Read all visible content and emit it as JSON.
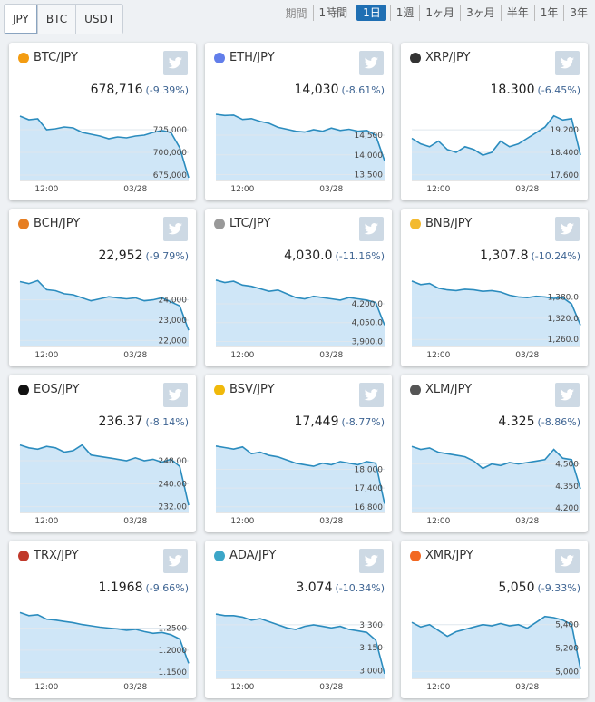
{
  "tabs": {
    "items": [
      "JPY",
      "BTC",
      "USDT"
    ],
    "active": 0
  },
  "period": {
    "label": "期間",
    "options": [
      "1時間",
      "1日",
      "1週",
      "1ヶ月",
      "3ヶ月",
      "半年",
      "1年",
      "3年"
    ],
    "active": 1
  },
  "cards": [
    {
      "pair": "BTC/JPY",
      "price": "678,716",
      "change": "(-9.39%)",
      "chart": {
        "type": "line",
        "color": "#2b8cbe",
        "grid": true,
        "categories": [
          null,
          null,
          null,
          "12:00",
          null,
          null,
          null,
          null,
          null,
          null,
          null,
          null,
          null,
          "03/28",
          null,
          null,
          null,
          null,
          null,
          null
        ],
        "values": [
          740000,
          736000,
          737000,
          725000,
          726000,
          728000,
          727000,
          722000,
          720000,
          718000,
          715000,
          717000,
          716000,
          718000,
          719000,
          722000,
          724000,
          722000,
          705000,
          672000
        ],
        "ylim": [
          669000,
          745000
        ],
        "yticks": [
          {
            "value": 675000,
            "label": "675,000"
          },
          {
            "value": 700000,
            "label": "700,000"
          },
          {
            "value": 725000,
            "label": "725,000"
          }
        ]
      }
    },
    {
      "pair": "ETH/JPY",
      "price": "14,030",
      "change": "(-8.61%)",
      "chart": {
        "type": "line",
        "color": "#2b8cbe",
        "grid": true,
        "categories": [
          null,
          null,
          null,
          "12:00",
          null,
          null,
          null,
          null,
          null,
          null,
          null,
          null,
          null,
          "03/28",
          null,
          null,
          null,
          null,
          null,
          null
        ],
        "values": [
          15030,
          15000,
          15010,
          14900,
          14920,
          14850,
          14800,
          14700,
          14650,
          14600,
          14580,
          14640,
          14600,
          14680,
          14620,
          14650,
          14600,
          14620,
          14500,
          13850
        ],
        "ylim": [
          13350,
          15100
        ],
        "yticks": [
          {
            "value": 13500,
            "label": "13,500"
          },
          {
            "value": 14000,
            "label": "14,000"
          },
          {
            "value": 14500,
            "label": "14,500"
          }
        ]
      }
    },
    {
      "pair": "XRP/JPY",
      "price": "18.300",
      "change": "(-6.45%)",
      "chart": {
        "type": "line",
        "color": "#2b8cbe",
        "grid": true,
        "categories": [
          null,
          null,
          null,
          "12:00",
          null,
          null,
          null,
          null,
          null,
          null,
          null,
          null,
          null,
          "03/28",
          null,
          null,
          null,
          null,
          null,
          null
        ],
        "values": [
          18.9,
          18.7,
          18.6,
          18.8,
          18.5,
          18.4,
          18.6,
          18.5,
          18.3,
          18.4,
          18.8,
          18.6,
          18.7,
          18.9,
          19.1,
          19.3,
          19.7,
          19.55,
          19.6,
          18.3
        ],
        "ylim": [
          17.4,
          19.85
        ],
        "yticks": [
          {
            "value": 17.6,
            "label": "17.600"
          },
          {
            "value": 18.4,
            "label": "18.400"
          },
          {
            "value": 19.2,
            "label": "19.200"
          }
        ]
      }
    },
    {
      "pair": "BCH/JPY",
      "price": "22,952",
      "change": "(-9.79%)",
      "chart": {
        "type": "line",
        "color": "#2b8cbe",
        "grid": true,
        "categories": [
          null,
          null,
          null,
          "12:00",
          null,
          null,
          null,
          null,
          null,
          null,
          null,
          null,
          null,
          "03/28",
          null,
          null,
          null,
          null,
          null,
          null
        ],
        "values": [
          24900,
          24800,
          24950,
          24500,
          24450,
          24300,
          24250,
          24100,
          23950,
          24050,
          24150,
          24100,
          24050,
          24100,
          23950,
          24000,
          24100,
          23900,
          23700,
          22500
        ],
        "ylim": [
          21700,
          25100
        ],
        "yticks": [
          {
            "value": 22000,
            "label": "22,000"
          },
          {
            "value": 23000,
            "label": "23,000"
          },
          {
            "value": 24000,
            "label": "24,000"
          }
        ]
      }
    },
    {
      "pair": "LTC/JPY",
      "price": "4,030.0",
      "change": "(-11.16%)",
      "chart": {
        "type": "line",
        "color": "#2b8cbe",
        "grid": true,
        "categories": [
          null,
          null,
          null,
          "12:00",
          null,
          null,
          null,
          null,
          null,
          null,
          null,
          null,
          null,
          "03/28",
          null,
          null,
          null,
          null,
          null,
          null
        ],
        "values": [
          4390,
          4370,
          4380,
          4350,
          4340,
          4320,
          4300,
          4310,
          4280,
          4250,
          4240,
          4260,
          4250,
          4240,
          4230,
          4250,
          4240,
          4230,
          4210,
          4030
        ],
        "ylim": [
          3860,
          4410
        ],
        "yticks": [
          {
            "value": 3900,
            "label": "3,900.0"
          },
          {
            "value": 4050,
            "label": "4,050.0"
          },
          {
            "value": 4200,
            "label": "4,200.0"
          }
        ]
      }
    },
    {
      "pair": "BNB/JPY",
      "price": "1,307.8",
      "change": "(-10.24%)",
      "chart": {
        "type": "line",
        "color": "#2b8cbe",
        "grid": true,
        "categories": [
          null,
          null,
          null,
          "12:00",
          null,
          null,
          null,
          null,
          null,
          null,
          null,
          null,
          null,
          "03/28",
          null,
          null,
          null,
          null,
          null,
          null
        ],
        "values": [
          1425,
          1415,
          1418,
          1405,
          1400,
          1398,
          1402,
          1400,
          1396,
          1398,
          1394,
          1385,
          1380,
          1378,
          1382,
          1380,
          1376,
          1378,
          1360,
          1300
        ],
        "ylim": [
          1240,
          1435
        ],
        "yticks": [
          {
            "value": 1260,
            "label": "1,260.0"
          },
          {
            "value": 1320,
            "label": "1,320.0"
          },
          {
            "value": 1380,
            "label": "1,380.0"
          }
        ]
      }
    },
    {
      "pair": "EOS/JPY",
      "price": "236.37",
      "change": "(-8.14%)",
      "chart": {
        "type": "line",
        "color": "#2b8cbe",
        "grid": true,
        "categories": [
          null,
          null,
          null,
          "12:00",
          null,
          null,
          null,
          null,
          null,
          null,
          null,
          null,
          null,
          "03/28",
          null,
          null,
          null,
          null,
          null,
          null
        ],
        "values": [
          253.5,
          252.5,
          252,
          253,
          252.5,
          251,
          251.5,
          253.5,
          250,
          249.5,
          249,
          248.5,
          248,
          249,
          248,
          248.5,
          247.5,
          248.5,
          246,
          232.5
        ],
        "ylim": [
          230,
          254
        ],
        "yticks": [
          {
            "value": 232,
            "label": "232.00"
          },
          {
            "value": 240,
            "label": "240.00"
          },
          {
            "value": 248,
            "label": "248.00"
          }
        ]
      }
    },
    {
      "pair": "BSV/JPY",
      "price": "17,449",
      "change": "(-8.77%)",
      "chart": {
        "type": "line",
        "color": "#2b8cbe",
        "grid": true,
        "categories": [
          null,
          null,
          null,
          "12:00",
          null,
          null,
          null,
          null,
          null,
          null,
          null,
          null,
          null,
          "03/28",
          null,
          null,
          null,
          null,
          null,
          null
        ],
        "values": [
          18750,
          18700,
          18650,
          18720,
          18500,
          18550,
          18450,
          18400,
          18300,
          18200,
          18150,
          18100,
          18200,
          18150,
          18250,
          18200,
          18150,
          18250,
          18200,
          16900
        ],
        "ylim": [
          16620,
          18830
        ],
        "yticks": [
          {
            "value": 16800,
            "label": "16,800"
          },
          {
            "value": 17400,
            "label": "17,400"
          },
          {
            "value": 18000,
            "label": "18,000"
          }
        ]
      }
    },
    {
      "pair": "XLM/JPY",
      "price": "4.325",
      "change": "(-8.86%)",
      "chart": {
        "type": "line",
        "color": "#2b8cbe",
        "grid": true,
        "categories": [
          null,
          null,
          null,
          "12:00",
          null,
          null,
          null,
          null,
          null,
          null,
          null,
          null,
          null,
          "03/28",
          null,
          null,
          null,
          null,
          null,
          null
        ],
        "values": [
          4.62,
          4.6,
          4.61,
          4.58,
          4.57,
          4.56,
          4.55,
          4.52,
          4.47,
          4.5,
          4.49,
          4.51,
          4.5,
          4.51,
          4.52,
          4.53,
          4.6,
          4.54,
          4.53,
          4.33
        ],
        "ylim": [
          4.17,
          4.64
        ],
        "yticks": [
          {
            "value": 4.2,
            "label": "4.200"
          },
          {
            "value": 4.35,
            "label": "4.350"
          },
          {
            "value": 4.5,
            "label": "4.500"
          }
        ]
      }
    },
    {
      "pair": "TRX/JPY",
      "price": "1.1968",
      "change": "(-9.66%)",
      "chart": {
        "type": "line",
        "color": "#2b8cbe",
        "grid": true,
        "categories": [
          null,
          null,
          null,
          "12:00",
          null,
          null,
          null,
          null,
          null,
          null,
          null,
          null,
          null,
          "03/28",
          null,
          null,
          null,
          null,
          null,
          null
        ],
        "values": [
          1.285,
          1.278,
          1.28,
          1.27,
          1.268,
          1.265,
          1.262,
          1.258,
          1.255,
          1.252,
          1.25,
          1.248,
          1.245,
          1.247,
          1.242,
          1.238,
          1.24,
          1.235,
          1.225,
          1.17
        ],
        "ylim": [
          1.136,
          1.292
        ],
        "yticks": [
          {
            "value": 1.15,
            "label": "1.1500"
          },
          {
            "value": 1.2,
            "label": "1.2000"
          },
          {
            "value": 1.25,
            "label": "1.2500"
          }
        ]
      }
    },
    {
      "pair": "ADA/JPY",
      "price": "3.074",
      "change": "(-10.34%)",
      "chart": {
        "type": "line",
        "color": "#2b8cbe",
        "grid": true,
        "categories": [
          null,
          null,
          null,
          "12:00",
          null,
          null,
          null,
          null,
          null,
          null,
          null,
          null,
          null,
          "03/28",
          null,
          null,
          null,
          null,
          null,
          null
        ],
        "values": [
          3.37,
          3.36,
          3.36,
          3.35,
          3.33,
          3.34,
          3.32,
          3.3,
          3.28,
          3.27,
          3.29,
          3.3,
          3.29,
          3.28,
          3.29,
          3.27,
          3.26,
          3.25,
          3.2,
          2.98
        ],
        "ylim": [
          2.95,
          3.4
        ],
        "yticks": [
          {
            "value": 3,
            "label": "3.000"
          },
          {
            "value": 3.15,
            "label": "3.150"
          },
          {
            "value": 3.3,
            "label": "3.300"
          }
        ]
      }
    },
    {
      "pair": "XMR/JPY",
      "price": "5,050",
      "change": "(-9.33%)",
      "chart": {
        "type": "line",
        "color": "#2b8cbe",
        "grid": true,
        "categories": [
          null,
          null,
          null,
          "12:00",
          null,
          null,
          null,
          null,
          null,
          null,
          null,
          null,
          null,
          "03/28",
          null,
          null,
          null,
          null,
          null,
          null
        ],
        "values": [
          5420,
          5380,
          5400,
          5350,
          5300,
          5340,
          5360,
          5380,
          5400,
          5390,
          5410,
          5390,
          5400,
          5370,
          5420,
          5470,
          5460,
          5440,
          5400,
          5020
        ],
        "ylim": [
          4940,
          5530
        ],
        "yticks": [
          {
            "value": 5000,
            "label": "5,000"
          },
          {
            "value": 5200,
            "label": "5,200"
          },
          {
            "value": 5400,
            "label": "5,400"
          }
        ]
      }
    }
  ]
}
